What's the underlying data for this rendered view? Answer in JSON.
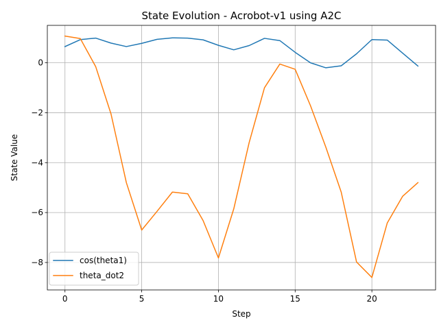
{
  "chart_data": {
    "type": "line",
    "title": "State Evolution - Acrobot-v1 using A2C",
    "xlabel": "Step",
    "ylabel": "State Value",
    "xlim": [
      -1.15,
      24.15
    ],
    "ylim": [
      -9.1,
      1.5
    ],
    "xticks": [
      0,
      5,
      10,
      15,
      20
    ],
    "yticks": [
      0,
      -2,
      -4,
      -6,
      -8
    ],
    "xtick_labels": [
      "0",
      "5",
      "10",
      "15",
      "20"
    ],
    "ytick_labels": [
      "0",
      "−2",
      "−4",
      "−6",
      "−8"
    ],
    "grid": true,
    "legend_position": "lower-left",
    "x": [
      0,
      1,
      2,
      3,
      4,
      5,
      6,
      7,
      8,
      9,
      10,
      11,
      12,
      13,
      14,
      15,
      16,
      17,
      18,
      19,
      20,
      21,
      22,
      23
    ],
    "series": [
      {
        "name": "cos(theta1)",
        "color": "#1f77b4",
        "values": [
          0.65,
          0.93,
          0.99,
          0.79,
          0.65,
          0.78,
          0.94,
          1.0,
          0.99,
          0.92,
          0.7,
          0.52,
          0.69,
          0.98,
          0.89,
          0.42,
          0.0,
          -0.2,
          -0.12,
          0.36,
          0.93,
          0.91,
          0.39,
          -0.13
        ]
      },
      {
        "name": "theta_dot2",
        "color": "#ff7f0e",
        "values": [
          1.07,
          0.97,
          -0.15,
          -2.05,
          -4.8,
          -6.7,
          -5.95,
          -5.18,
          -5.25,
          -6.32,
          -7.82,
          -5.85,
          -3.2,
          -1.0,
          -0.05,
          -0.26,
          -1.72,
          -3.38,
          -5.18,
          -7.98,
          -8.6,
          -6.42,
          -5.35,
          -4.8
        ]
      }
    ]
  }
}
